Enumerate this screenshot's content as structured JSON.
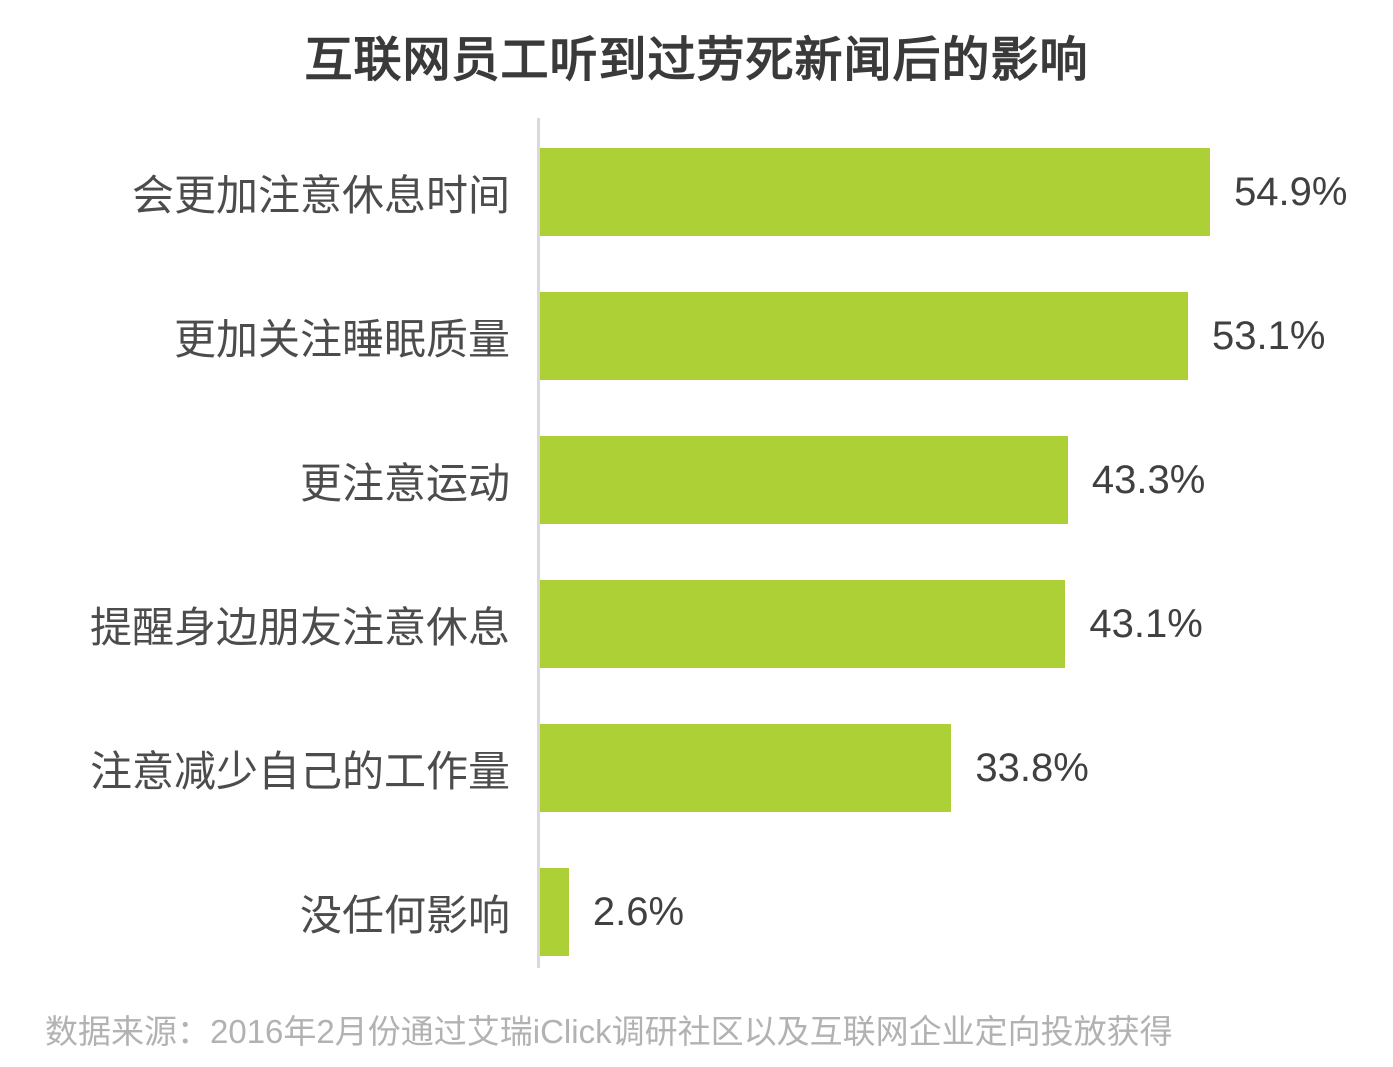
{
  "chart_data": {
    "type": "bar",
    "orientation": "horizontal",
    "title": "互联网员工听到过劳死新闻后的影响",
    "categories": [
      "会更加注意休息时间",
      "更加关注睡眠质量",
      "更注意运动",
      "提醒身边朋友注意休息",
      "注意减少自己的工作量",
      "没任何影响"
    ],
    "values": [
      54.9,
      53.1,
      43.3,
      43.1,
      33.8,
      2.6
    ],
    "value_labels": [
      "54.9%",
      "53.1%",
      "43.3%",
      "43.1%",
      "33.8%",
      "2.6%"
    ],
    "xlabel": "",
    "ylabel": "",
    "xlim": [
      0,
      60
    ],
    "grid": false,
    "legend": false,
    "bar_color": "#acd036",
    "axis_line_color": "#d9d9d9",
    "source_note": "数据来源：2016年2月份通过艾瑞iClick调研社区以及互联网企业定向投放获得"
  }
}
